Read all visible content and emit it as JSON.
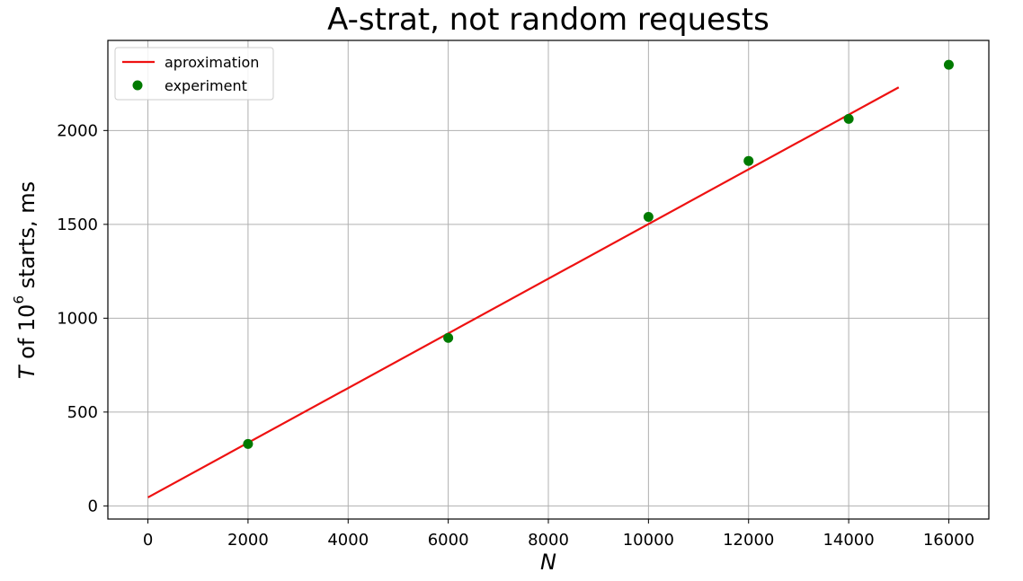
{
  "chart_data": {
    "type": "line",
    "title": "A-strat, not random requests",
    "xlabel": "N",
    "ylabel": {
      "var": "T",
      "prefix": " of 10",
      "sup": "6",
      "suffix": " starts, ms"
    },
    "xlim": [
      -800,
      16800
    ],
    "ylim": [
      -70,
      2480
    ],
    "xticks": [
      0,
      2000,
      4000,
      6000,
      8000,
      10000,
      12000,
      14000,
      16000
    ],
    "yticks": [
      0,
      500,
      1000,
      1500,
      2000
    ],
    "grid": true,
    "legend_position": "top-left",
    "series": [
      {
        "name": "aproximation",
        "kind": "line",
        "color": "#ee1111",
        "x": [
          0,
          15000
        ],
        "y": [
          45,
          2230
        ]
      },
      {
        "name": "experiment",
        "kind": "scatter",
        "color": "#007a00",
        "x": [
          2000,
          6000,
          10000,
          12000,
          14000,
          16000
        ],
        "y": [
          330,
          895,
          1540,
          1838,
          2062,
          2350
        ]
      }
    ]
  }
}
